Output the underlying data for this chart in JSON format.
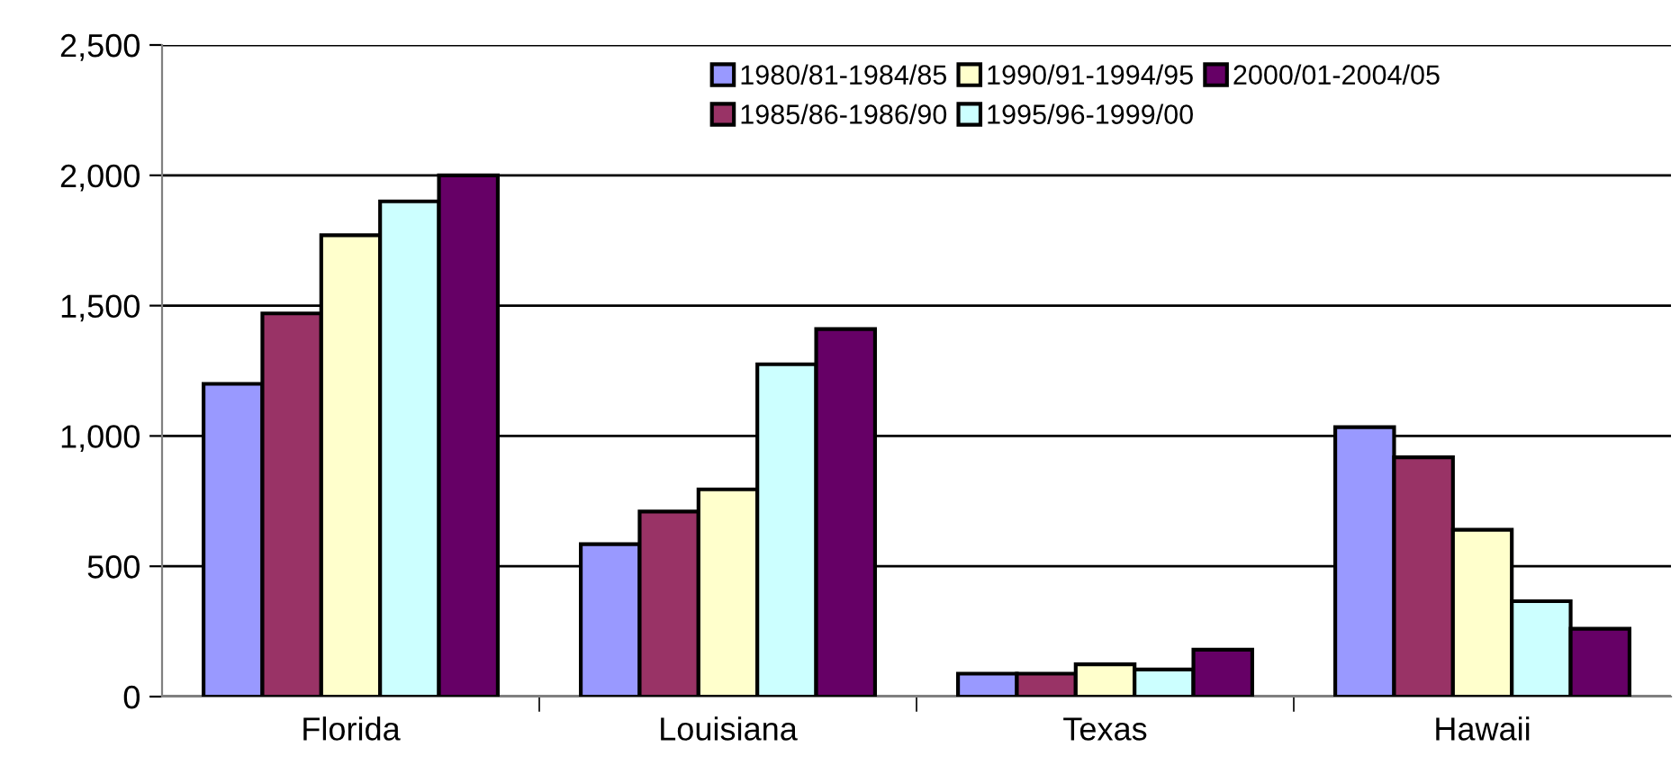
{
  "chart_data": {
    "type": "bar",
    "categories": [
      "Florida",
      "Louisiana",
      "Texas",
      "Hawaii"
    ],
    "series": [
      {
        "name": "1980/81-1984/85",
        "color": "#9999ff",
        "values": [
          1200,
          585,
          88,
          1034
        ]
      },
      {
        "name": "1985/86-1986/90",
        "color": "#993366",
        "values": [
          1470,
          710,
          88,
          918
        ]
      },
      {
        "name": "1990/91-1994/95",
        "color": "#ffffcc",
        "values": [
          1770,
          795,
          124,
          640
        ]
      },
      {
        "name": "1995/96-1999/00",
        "color": "#ccffff",
        "values": [
          1900,
          1275,
          104,
          366
        ]
      },
      {
        "name": "2000/01-2004/05",
        "color": "#660066",
        "values": [
          2000,
          1410,
          180,
          260
        ]
      }
    ],
    "ylim": [
      0,
      2500
    ],
    "yticks": [
      {
        "value": 0,
        "label": "0"
      },
      {
        "value": 500,
        "label": "500"
      },
      {
        "value": 1000,
        "label": "1,000"
      },
      {
        "value": 1500,
        "label": "1,500"
      },
      {
        "value": 2000,
        "label": "2,000"
      },
      {
        "value": 2500,
        "label": "2,500"
      }
    ],
    "grid": "y",
    "legend": "top right"
  }
}
